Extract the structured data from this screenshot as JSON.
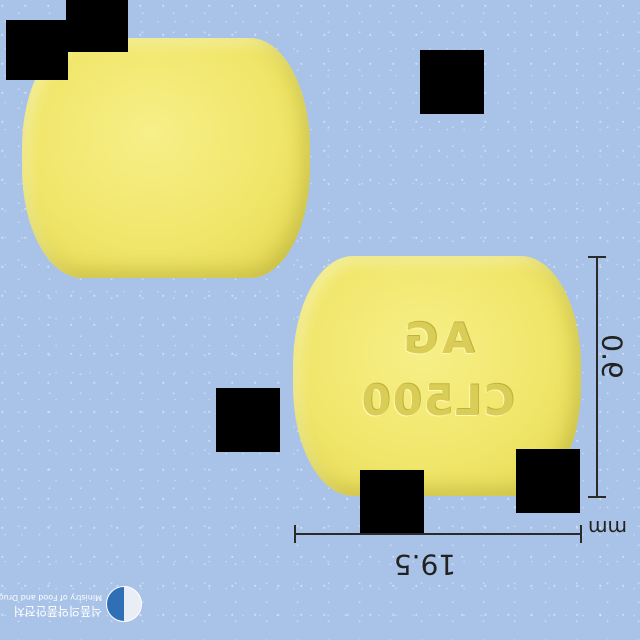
{
  "pill": {
    "imprint_line1": "AG",
    "imprint_line2": "CL500",
    "color": "#f0e66a"
  },
  "dimensions": {
    "length": "19.5",
    "width": "9.0",
    "unit": "mm"
  },
  "watermark": {
    "korean": "식품의약품안전처",
    "english": "Ministry of Food and Drug Safety"
  },
  "background_color": "#a9c3e8"
}
